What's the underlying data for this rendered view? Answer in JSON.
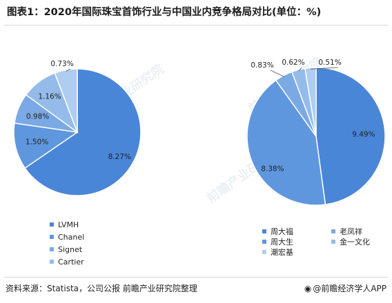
{
  "title": "图表1：2020年国际珠宝首饰行业与中国业内竞争格局对比(单位：%)",
  "footer": {
    "source": "资料来源：Statista，公司公报 前瞻产业研究院整理",
    "brand": "@前瞻经济学人APP"
  },
  "watermark": "前瞻产业研究院",
  "chart_data": [
    {
      "type": "pie",
      "slices": [
        {
          "label": "LVMH",
          "value": 8.27,
          "display": "8.27%",
          "color": "#4a86d8"
        },
        {
          "label": "Chanel",
          "value": 1.5,
          "display": "1.50%",
          "color": "#5f97df"
        },
        {
          "label": "Signet",
          "value": 0.98,
          "display": "0.98%",
          "color": "#7aa9e5"
        },
        {
          "label": "Cartier",
          "value": 1.16,
          "display": "1.16%",
          "color": "#94bbea"
        },
        {
          "label": "",
          "value": 0.73,
          "display": "0.73%",
          "color": "#afcdf0"
        }
      ],
      "legend": [
        "LVMH",
        "Chanel",
        "Signet",
        "Cartier"
      ],
      "legend_colors": [
        "#4a86d8",
        "#5f97df",
        "#7aa9e5",
        "#94bbea"
      ]
    },
    {
      "type": "pie",
      "slices": [
        {
          "label": "周大福",
          "value": 9.49,
          "display": "9.49%",
          "color": "#4a86d8"
        },
        {
          "label": "周大生",
          "value": 8.38,
          "display": "8.38%",
          "color": "#5f97df"
        },
        {
          "label": "老凤祥",
          "value": 0.83,
          "display": "0.83%",
          "color": "#7aa9e5"
        },
        {
          "label": "金一文化",
          "value": 0.62,
          "display": "0.62%",
          "color": "#94bbea"
        },
        {
          "label": "潮宏基",
          "value": 0.51,
          "display": "0.51%",
          "color": "#afcdf0"
        }
      ],
      "legend": [
        "周大福",
        "老凤祥",
        "周大生",
        "金一文化",
        "潮宏基"
      ],
      "legend_colors": [
        "#4a86d8",
        "#7aa9e5",
        "#5f97df",
        "#94bbea",
        "#afcdf0"
      ]
    }
  ]
}
